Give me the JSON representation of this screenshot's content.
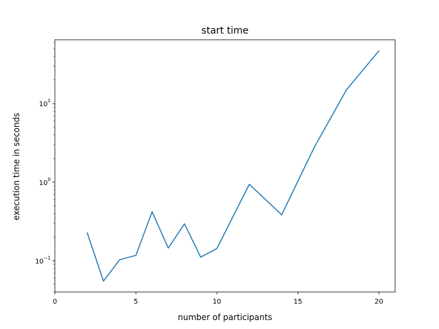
{
  "chart_data": {
    "type": "line",
    "title": "start time",
    "xlabel": "number of participants",
    "ylabel": "execution time in seconds",
    "xlim": [
      0,
      21
    ],
    "ylim": [
      0.04,
      65
    ],
    "yscale": "log",
    "grid": false,
    "x_ticks": [
      {
        "value": 0,
        "label": "0"
      },
      {
        "value": 5,
        "label": "5"
      },
      {
        "value": 10,
        "label": "10"
      },
      {
        "value": 15,
        "label": "15"
      },
      {
        "value": 20,
        "label": "20"
      }
    ],
    "y_ticks": [
      {
        "value": 0.1,
        "base": "10",
        "exp": "−1"
      },
      {
        "value": 1,
        "base": "10",
        "exp": "0"
      },
      {
        "value": 10,
        "base": "10",
        "exp": "1"
      }
    ],
    "series": [
      {
        "color": "#1f77b4",
        "x": [
          2,
          3,
          4,
          5,
          6,
          7,
          8,
          9,
          10,
          12,
          14,
          16,
          18,
          20
        ],
        "y": [
          0.225,
          0.055,
          0.103,
          0.117,
          0.42,
          0.145,
          0.295,
          0.111,
          0.143,
          0.94,
          0.385,
          2.75,
          15,
          47
        ]
      }
    ]
  }
}
